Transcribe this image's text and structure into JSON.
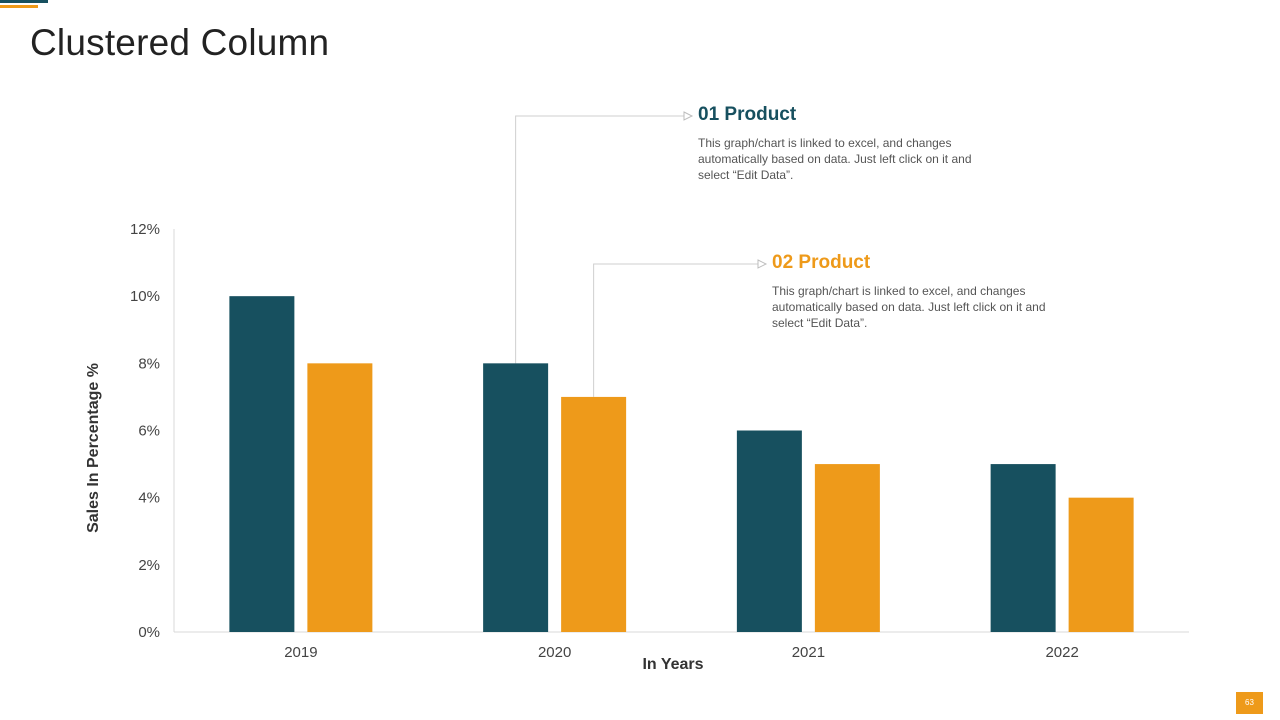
{
  "slide": {
    "title": "Clustered Column",
    "page_number": "63"
  },
  "callouts": [
    {
      "heading": "01 Product",
      "text": "This graph/chart is linked to excel, and changes automatically based on data. Just left click on it and select “Edit Data”."
    },
    {
      "heading": "02 Product",
      "text": "This graph/chart is linked to excel, and changes automatically based on data. Just left click on it and select “Edit Data”."
    }
  ],
  "colors": {
    "series_1": "#17505f",
    "series_2": "#ee9a1a"
  },
  "chart_data": {
    "type": "bar",
    "title": "",
    "xlabel": "In Years",
    "ylabel": "Sales In Percentage %",
    "categories": [
      "2019",
      "2020",
      "2021",
      "2022"
    ],
    "series": [
      {
        "values": [
          10,
          8,
          6,
          5
        ]
      },
      {
        "values": [
          8,
          7,
          5,
          4
        ]
      }
    ],
    "ylim": [
      0,
      12
    ],
    "yticks": [
      0,
      2,
      4,
      6,
      8,
      10,
      12
    ],
    "ytick_labels": [
      "0%",
      "2%",
      "4%",
      "6%",
      "8%",
      "10%",
      "12%"
    ],
    "grid": false,
    "legend": "none"
  }
}
